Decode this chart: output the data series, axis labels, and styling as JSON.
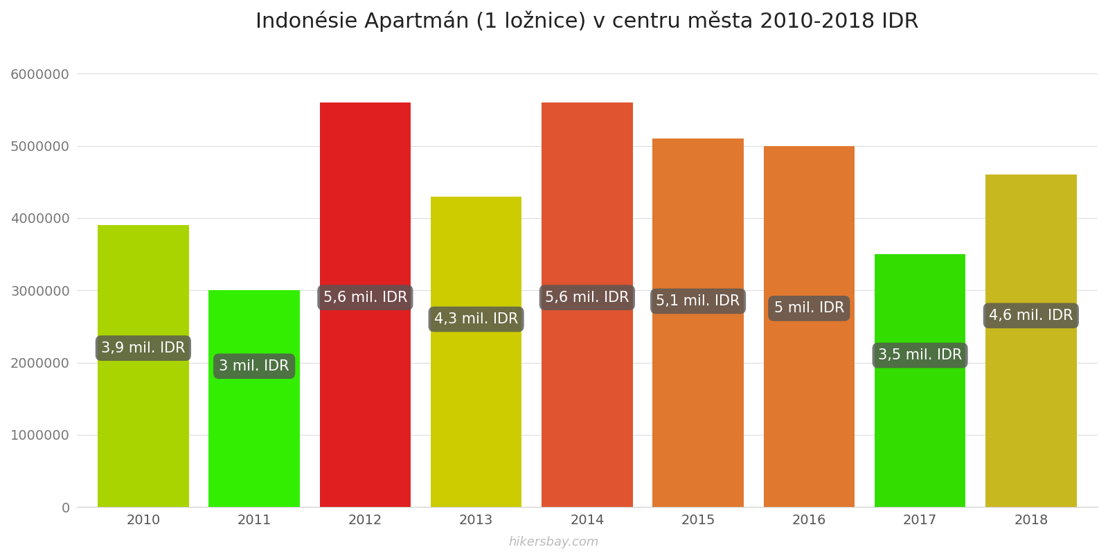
{
  "title": "Indonésie Apartmán (1 ložnice) v centru města 2010-2018 IDR",
  "years": [
    2010,
    2011,
    2012,
    2013,
    2014,
    2015,
    2016,
    2017,
    2018
  ],
  "values": [
    3900000,
    3000000,
    5600000,
    4300000,
    5600000,
    5100000,
    5000000,
    3500000,
    4600000
  ],
  "labels": [
    "3,9 mil. IDR",
    "3 mil. IDR",
    "5,6 mil. IDR",
    "4,3 mil. IDR",
    "5,6 mil. IDR",
    "5,1 mil. IDR",
    "5 mil. IDR",
    "3,5 mil. IDR",
    "4,6 mil. IDR"
  ],
  "bar_colors": [
    "#aad400",
    "#33ee00",
    "#e02020",
    "#cccc00",
    "#e05530",
    "#e07830",
    "#e07830",
    "#33dd00",
    "#c8b820"
  ],
  "label_y_values": [
    2200000,
    1950000,
    2900000,
    2600000,
    2900000,
    2850000,
    2750000,
    2100000,
    2650000
  ],
  "ylim": [
    0,
    6400000
  ],
  "yticks": [
    0,
    1000000,
    2000000,
    3000000,
    4000000,
    5000000,
    6000000
  ],
  "background_color": "#ffffff",
  "grid_color": "#dddddd",
  "watermark": "hikersbay.com",
  "title_fontsize": 22,
  "label_fontsize": 15,
  "tick_fontsize": 14,
  "bar_width": 0.82
}
